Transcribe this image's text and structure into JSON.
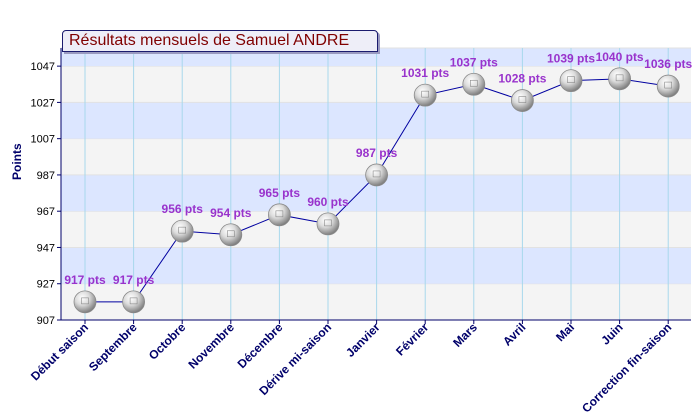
{
  "chart_data": {
    "type": "line",
    "title": "Résultats mensuels de Samuel ANDRE",
    "xlabel": "",
    "ylabel": "Points",
    "categories": [
      "Début saison",
      "Septembre",
      "Octobre",
      "Novembre",
      "Décembre",
      "Dérive mi-saison",
      "Janvier",
      "Février",
      "Mars",
      "Avril",
      "Mai",
      "Juin",
      "Correction fin-saison"
    ],
    "series": [
      {
        "values": [
          917,
          917,
          956,
          954,
          965,
          960,
          987,
          1031,
          1037,
          1028,
          1039,
          1040,
          1036
        ],
        "labels": [
          "917 pts",
          "917 pts",
          "956 pts",
          "954 pts",
          "965 pts",
          "960 pts",
          "987 pts",
          "1031 pts",
          "1037 pts",
          "1028 pts",
          "1039 pts",
          "1040 pts",
          "1036 pts"
        ]
      }
    ],
    "yticks": [
      907,
      927,
      947,
      967,
      987,
      1007,
      1027,
      1047
    ],
    "ylim": [
      907,
      1057
    ],
    "grid": true,
    "colors": {
      "line": "#0000a0",
      "label": "#9933cc",
      "axis": "#00006a",
      "title": "#800000",
      "band_light": "#f4f4f4",
      "band_blue": "#dce6ff",
      "vgrid": "#a8d8ec"
    }
  }
}
